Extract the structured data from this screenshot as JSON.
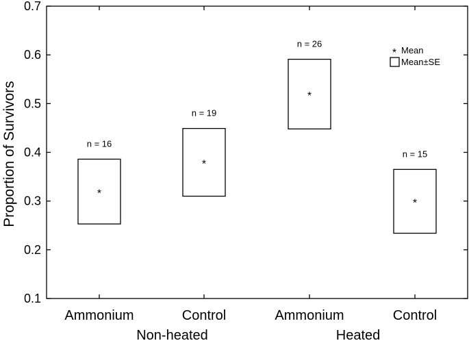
{
  "chart_data": {
    "type": "box",
    "title": "",
    "xlabel": "",
    "ylabel": "Proportion of Survivors",
    "ylim": [
      0.1,
      0.7
    ],
    "yticks": [
      0.1,
      0.2,
      0.3,
      0.4,
      0.5,
      0.6,
      0.7
    ],
    "grid": false,
    "legend_position": "top-right",
    "legend": {
      "mean": "Mean",
      "box": "Mean±SE"
    },
    "groups": [
      {
        "label": "Non-heated",
        "categories": [
          "Ammonium",
          "Control"
        ]
      },
      {
        "label": "Heated",
        "categories": [
          "Ammonium",
          "Control"
        ]
      }
    ],
    "categories": [
      "Ammonium",
      "Control",
      "Ammonium",
      "Control"
    ],
    "boxes": [
      {
        "category": "Ammonium",
        "group": "Non-heated",
        "mean": 0.32,
        "se_low": 0.253,
        "se_high": 0.386,
        "n_label": "n = 16"
      },
      {
        "category": "Control",
        "group": "Non-heated",
        "mean": 0.38,
        "se_low": 0.31,
        "se_high": 0.449,
        "n_label": "n = 19"
      },
      {
        "category": "Ammonium",
        "group": "Heated",
        "mean": 0.52,
        "se_low": 0.448,
        "se_high": 0.591,
        "n_label": "n = 26"
      },
      {
        "category": "Control",
        "group": "Heated",
        "mean": 0.3,
        "se_low": 0.234,
        "se_high": 0.365,
        "n_label": "n = 15"
      }
    ]
  }
}
